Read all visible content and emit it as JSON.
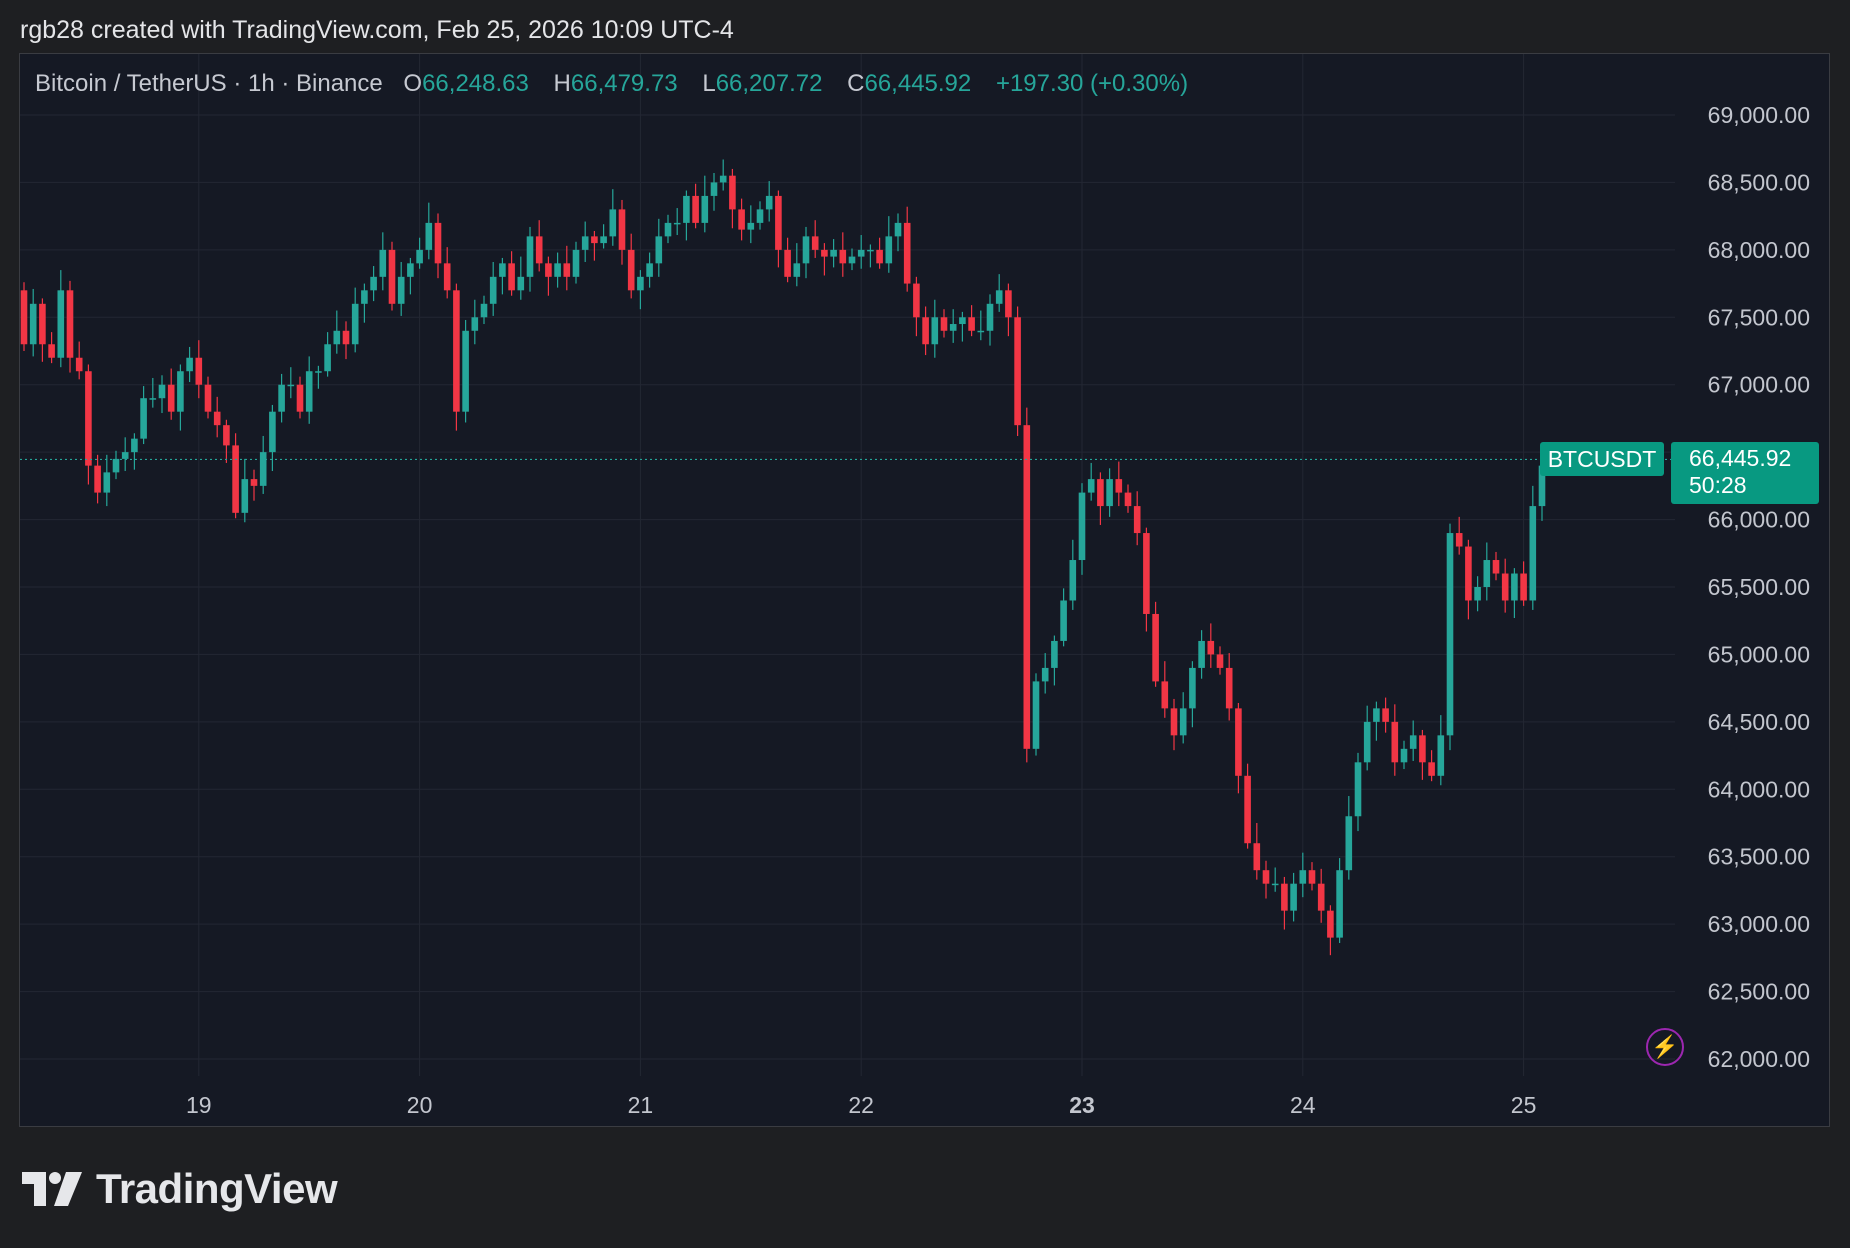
{
  "credit": "rgb28 created with TradingView.com, Feb 25, 2026 10:09 UTC-4",
  "legend": {
    "symbol": "Bitcoin / TetherUS · 1h · Binance",
    "open_label": "O",
    "open": "66,248.63",
    "high_label": "H",
    "high": "66,479.73",
    "low_label": "L",
    "low": "66,207.72",
    "close_label": "C",
    "close": "66,445.92",
    "change": "+197.30 (+0.30%)"
  },
  "price_tag": {
    "symbol": "BTCUSDT",
    "price": "66,445.92",
    "countdown": "50:28"
  },
  "brand": "TradingView",
  "colors": {
    "up": "#26a69a",
    "down": "#f23645",
    "background": "#151924",
    "grid": "#232733",
    "price_line": "#26a69a"
  },
  "chart_data": {
    "type": "candlestick",
    "title": "Bitcoin / TetherUS · 1h · Binance",
    "interval": "1h",
    "ylim": [
      62000,
      69000
    ],
    "y_ticks": [
      "62,000.00",
      "62,500.00",
      "63,000.00",
      "63,500.00",
      "64,000.00",
      "64,500.00",
      "65,000.00",
      "65,500.00",
      "66,000.00",
      "66,500.00",
      "67,000.00",
      "67,500.00",
      "68,000.00",
      "68,500.00",
      "69,000.00"
    ],
    "x_tick_labels": [
      {
        "label": "19",
        "bar": 19,
        "bold": false
      },
      {
        "label": "20",
        "bar": 43,
        "bold": false
      },
      {
        "label": "21",
        "bar": 67,
        "bold": false
      },
      {
        "label": "22",
        "bar": 91,
        "bold": false
      },
      {
        "label": "23",
        "bar": 115,
        "bold": true
      },
      {
        "label": "24",
        "bar": 139,
        "bold": false
      },
      {
        "label": "25",
        "bar": 163,
        "bold": false
      }
    ],
    "last_price": 66445.92,
    "hourly_closes": [
      67300,
      67600,
      67300,
      67200,
      67700,
      67200,
      67100,
      66400,
      66200,
      66350,
      66450,
      66500,
      66600,
      66900,
      66900,
      67000,
      66800,
      67100,
      67200,
      67000,
      66800,
      66700,
      66550,
      66050,
      66300,
      66250,
      66500,
      66800,
      67000,
      67000,
      66800,
      67100,
      67100,
      67300,
      67400,
      67300,
      67600,
      67700,
      67800,
      68000,
      67600,
      67800,
      67900,
      68000,
      68200,
      67900,
      67700,
      66800,
      67400,
      67500,
      67600,
      67800,
      67900,
      67700,
      67800,
      68100,
      67900,
      67800,
      67900,
      67800,
      68000,
      68100,
      68050,
      68100,
      68300,
      68000,
      67700,
      67800,
      67900,
      68100,
      68200,
      68200,
      68400,
      68200,
      68400,
      68500,
      68550,
      68300,
      68150,
      68200,
      68300,
      68400,
      68000,
      67800,
      67900,
      68100,
      68000,
      67950,
      68000,
      67900,
      67950,
      68000,
      68000,
      67900,
      68100,
      68200,
      67750,
      67500,
      67300,
      67500,
      67400,
      67450,
      67500,
      67400,
      67400,
      67600,
      67700,
      67500,
      66700,
      64300,
      64800,
      64900,
      65100,
      65400,
      65700,
      66200,
      66300,
      66100,
      66300,
      66200,
      66100,
      65900,
      65300,
      64800,
      64600,
      64400,
      64600,
      64900,
      65100,
      65000,
      64900,
      64600,
      64100,
      63600,
      63400,
      63300,
      63300,
      63100,
      63300,
      63400,
      63300,
      63100,
      62900,
      63400,
      63800,
      64200,
      64500,
      64600,
      64500,
      64200,
      64300,
      64400,
      64200,
      64100,
      64400,
      65900,
      65800,
      65400,
      65500,
      65700,
      65600,
      65400,
      65600,
      65400,
      66100,
      66400,
      66446
    ]
  }
}
